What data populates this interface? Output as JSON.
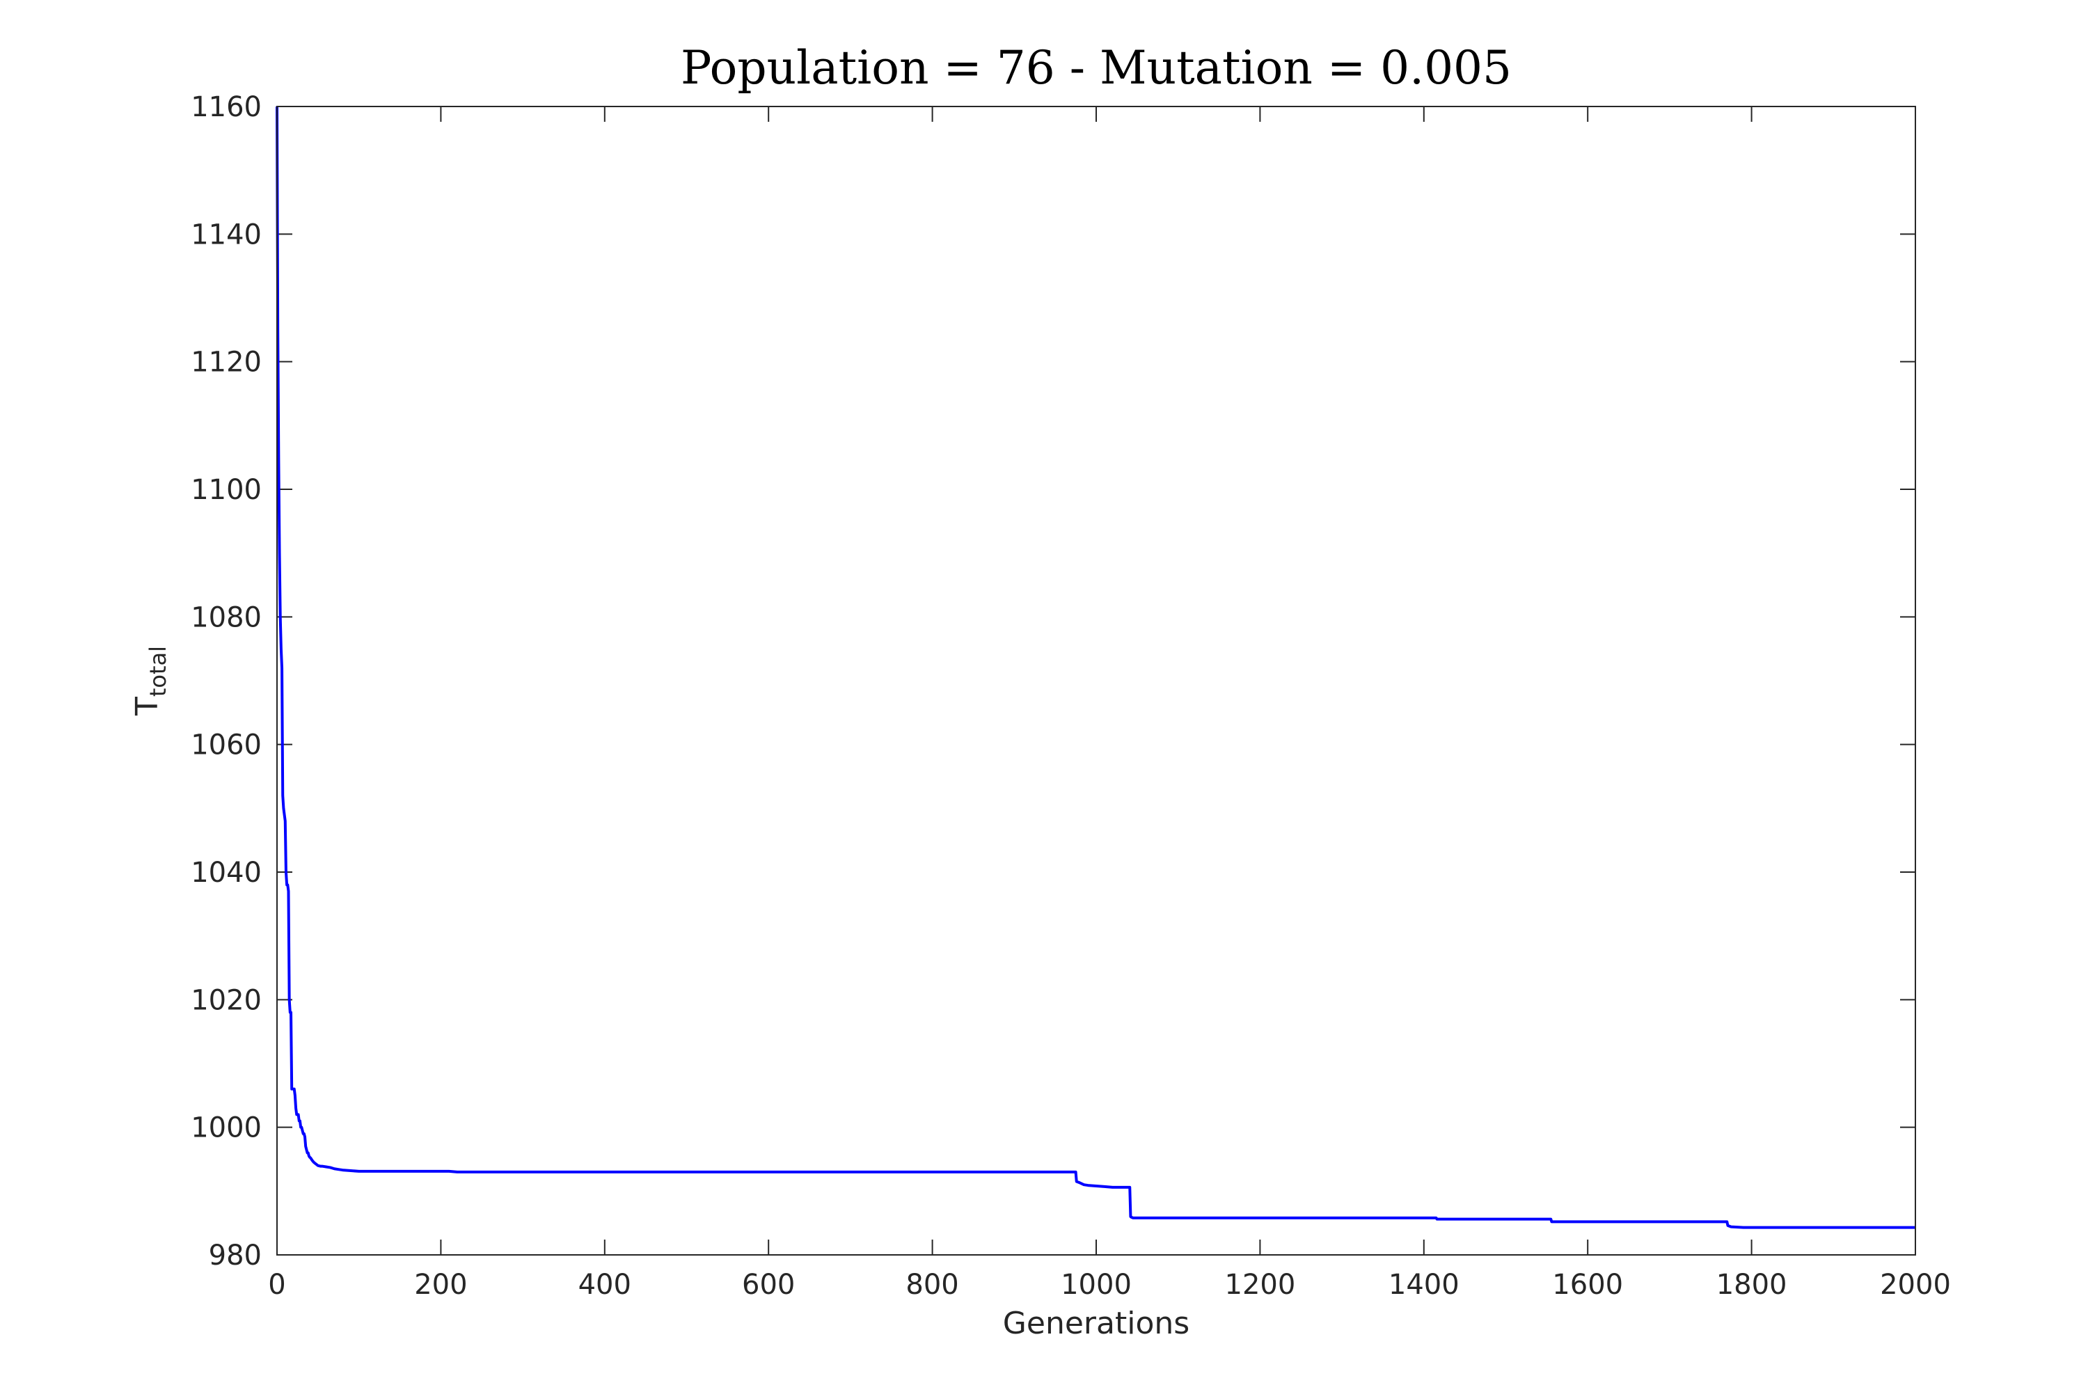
{
  "chart_data": {
    "type": "line",
    "title": "Population = 76 - Mutation = 0.005",
    "xlabel": "Generations",
    "ylabel": {
      "main": "T",
      "subscript": "total"
    },
    "xlim": [
      0,
      2000
    ],
    "ylim": [
      980,
      1160
    ],
    "xticks": [
      0,
      200,
      400,
      600,
      800,
      1000,
      1200,
      1400,
      1600,
      1800,
      2000
    ],
    "yticks": [
      980,
      1000,
      1020,
      1040,
      1060,
      1080,
      1100,
      1120,
      1140,
      1160
    ],
    "grid": false,
    "line_color": "#0000ff",
    "series": [
      {
        "x": [
          0,
          1,
          2,
          3,
          4,
          5,
          6,
          7,
          8,
          9,
          10,
          11,
          12,
          13,
          14,
          15,
          16,
          17,
          18,
          19,
          20,
          21,
          22,
          23,
          24,
          25,
          26,
          27,
          28,
          29,
          30,
          31,
          32,
          33,
          34,
          35,
          36,
          37,
          38,
          39,
          40,
          41,
          42,
          43,
          45,
          47,
          50,
          53,
          55,
          60,
          65,
          70,
          75,
          80,
          90,
          100,
          110,
          120,
          150,
          200,
          210,
          220,
          230,
          240,
          250,
          300,
          400,
          500,
          600,
          700,
          800,
          900,
          975,
          976,
          980,
          985,
          990,
          1000,
          1010,
          1020,
          1030,
          1040,
          1041,
          1042,
          1043,
          1045,
          1060,
          1080,
          1100,
          1200,
          1300,
          1400,
          1415,
          1416,
          1420,
          1450,
          1500,
          1550,
          1555,
          1556,
          1560,
          1600,
          1650,
          1700,
          1765,
          1770,
          1771,
          1775,
          1790,
          1800,
          1850,
          1900,
          1950,
          2000
        ],
        "y": [
          1160,
          1125,
          1105,
          1090,
          1080,
          1075,
          1072,
          1052,
          1050,
          1049,
          1048,
          1040,
          1038,
          1038,
          1037,
          1020,
          1018,
          1018,
          1006,
          1006,
          1006,
          1006,
          1005,
          1003,
          1002,
          1002,
          1002,
          1001,
          1001,
          1000,
          1000,
          999.5,
          999,
          999,
          998.5,
          997,
          996.5,
          996,
          996,
          995.5,
          995.3,
          995.2,
          995,
          994.8,
          994.5,
          994.3,
          994,
          993.9,
          993.9,
          993.8,
          993.7,
          993.5,
          993.4,
          993.3,
          993.2,
          993.1,
          993.1,
          993.1,
          993.1,
          993.1,
          993.1,
          993,
          993,
          993,
          993,
          993,
          993,
          993,
          993,
          993,
          993,
          993,
          993,
          991.5,
          991.3,
          991,
          990.9,
          990.8,
          990.7,
          990.6,
          990.6,
          990.6,
          990.6,
          986,
          985.9,
          985.8,
          985.8,
          985.8,
          985.8,
          985.8,
          985.8,
          985.8,
          985.8,
          985.6,
          985.6,
          985.6,
          985.6,
          985.6,
          985.6,
          985.2,
          985.2,
          985.2,
          985.2,
          985.2,
          985.2,
          985.2,
          984.6,
          984.4,
          984.3,
          984.3,
          984.3,
          984.3,
          984.3,
          984.3
        ]
      }
    ]
  }
}
